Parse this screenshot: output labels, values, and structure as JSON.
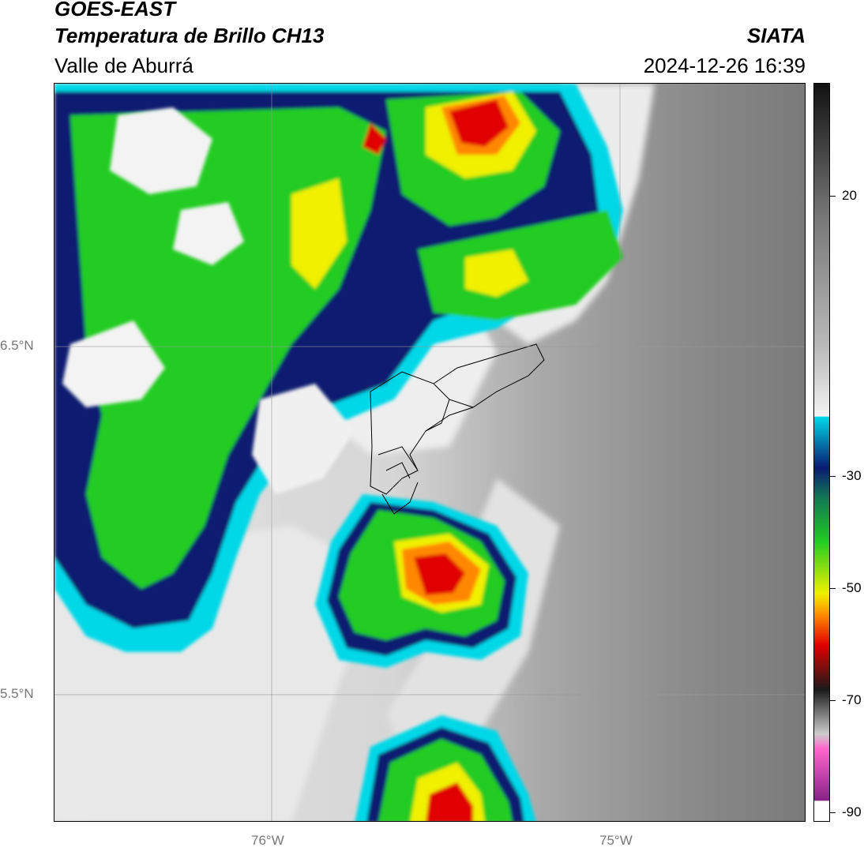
{
  "header": {
    "satellite": "GOES-EAST",
    "product": "Temperatura de Brillo CH13",
    "region": "Valle de Aburrá",
    "brand": "SIATA",
    "datetime": "2024-12-26 16:39"
  },
  "map": {
    "lat_labels": [
      "6.5°N",
      "5.5°N"
    ],
    "lon_labels": [
      "76°W",
      "75°W"
    ],
    "lat_values": [
      6.5,
      5.5
    ],
    "lon_values": [
      -76.0,
      -75.0
    ],
    "extent": {
      "lon_min": -76.62,
      "lon_max": -74.47,
      "lat_min": 5.13,
      "lat_max": 6.75
    },
    "boundary_name": "Valle de Aburrá municipalities"
  },
  "colorbar": {
    "tick_labels": [
      "20",
      "-30",
      "-50",
      "-70",
      "-90"
    ],
    "tick_values": [
      20,
      -30,
      -50,
      -70,
      -90
    ],
    "range": [
      -92,
      40
    ],
    "colors": {
      "warm": "#8a8a8a",
      "white": "#f3f3f3",
      "cyan": "#00d8e8",
      "navy": "#0a1a70",
      "green": "#22cc22",
      "yellow": "#f0f000",
      "orange": "#ff8800",
      "red": "#e00000",
      "black": "#1a1a1a",
      "magenta": "#c020c0"
    }
  }
}
